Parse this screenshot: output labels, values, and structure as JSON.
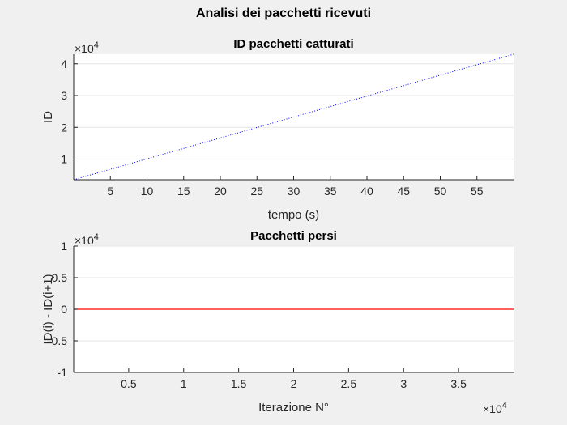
{
  "figure": {
    "title": "Analisi dei pacchetti ricevuti",
    "background": "#f0f0f0"
  },
  "chart_data": [
    {
      "type": "line",
      "title": "ID pacchetti catturati",
      "xlabel": "tempo (s)",
      "ylabel": "ID",
      "xlim": [
        0,
        60
      ],
      "ylim": [
        0.35,
        4.3
      ],
      "y_exponent_label": "×10",
      "y_exponent_power": "4",
      "x_ticks": [
        5,
        10,
        15,
        20,
        25,
        30,
        35,
        40,
        45,
        50,
        55
      ],
      "y_ticks": [
        1,
        2,
        3,
        4
      ],
      "grid": "horizontal",
      "series": [
        {
          "color": "#0000ff",
          "style": "dotted",
          "x": [
            0,
            60
          ],
          "y": [
            0.35,
            4.3
          ]
        }
      ]
    },
    {
      "type": "line",
      "title": "Pacchetti persi",
      "xlabel": "Iterazione N°",
      "ylabel": "ID(i) - ID(i+1)",
      "xlim": [
        0,
        4.0
      ],
      "ylim": [
        -1,
        1
      ],
      "y_exponent_label": "×10",
      "y_exponent_power": "4",
      "x_exponent_label": "×10",
      "x_exponent_power": "4",
      "x_ticks": [
        0.5,
        1,
        1.5,
        2,
        2.5,
        3,
        3.5
      ],
      "y_ticks": [
        -1,
        -0.5,
        0,
        0.5,
        1
      ],
      "grid": "horizontal",
      "series": [
        {
          "color": "#ff0000",
          "style": "solid",
          "x": [
            0,
            4.0
          ],
          "y": [
            0,
            0
          ]
        }
      ]
    }
  ]
}
